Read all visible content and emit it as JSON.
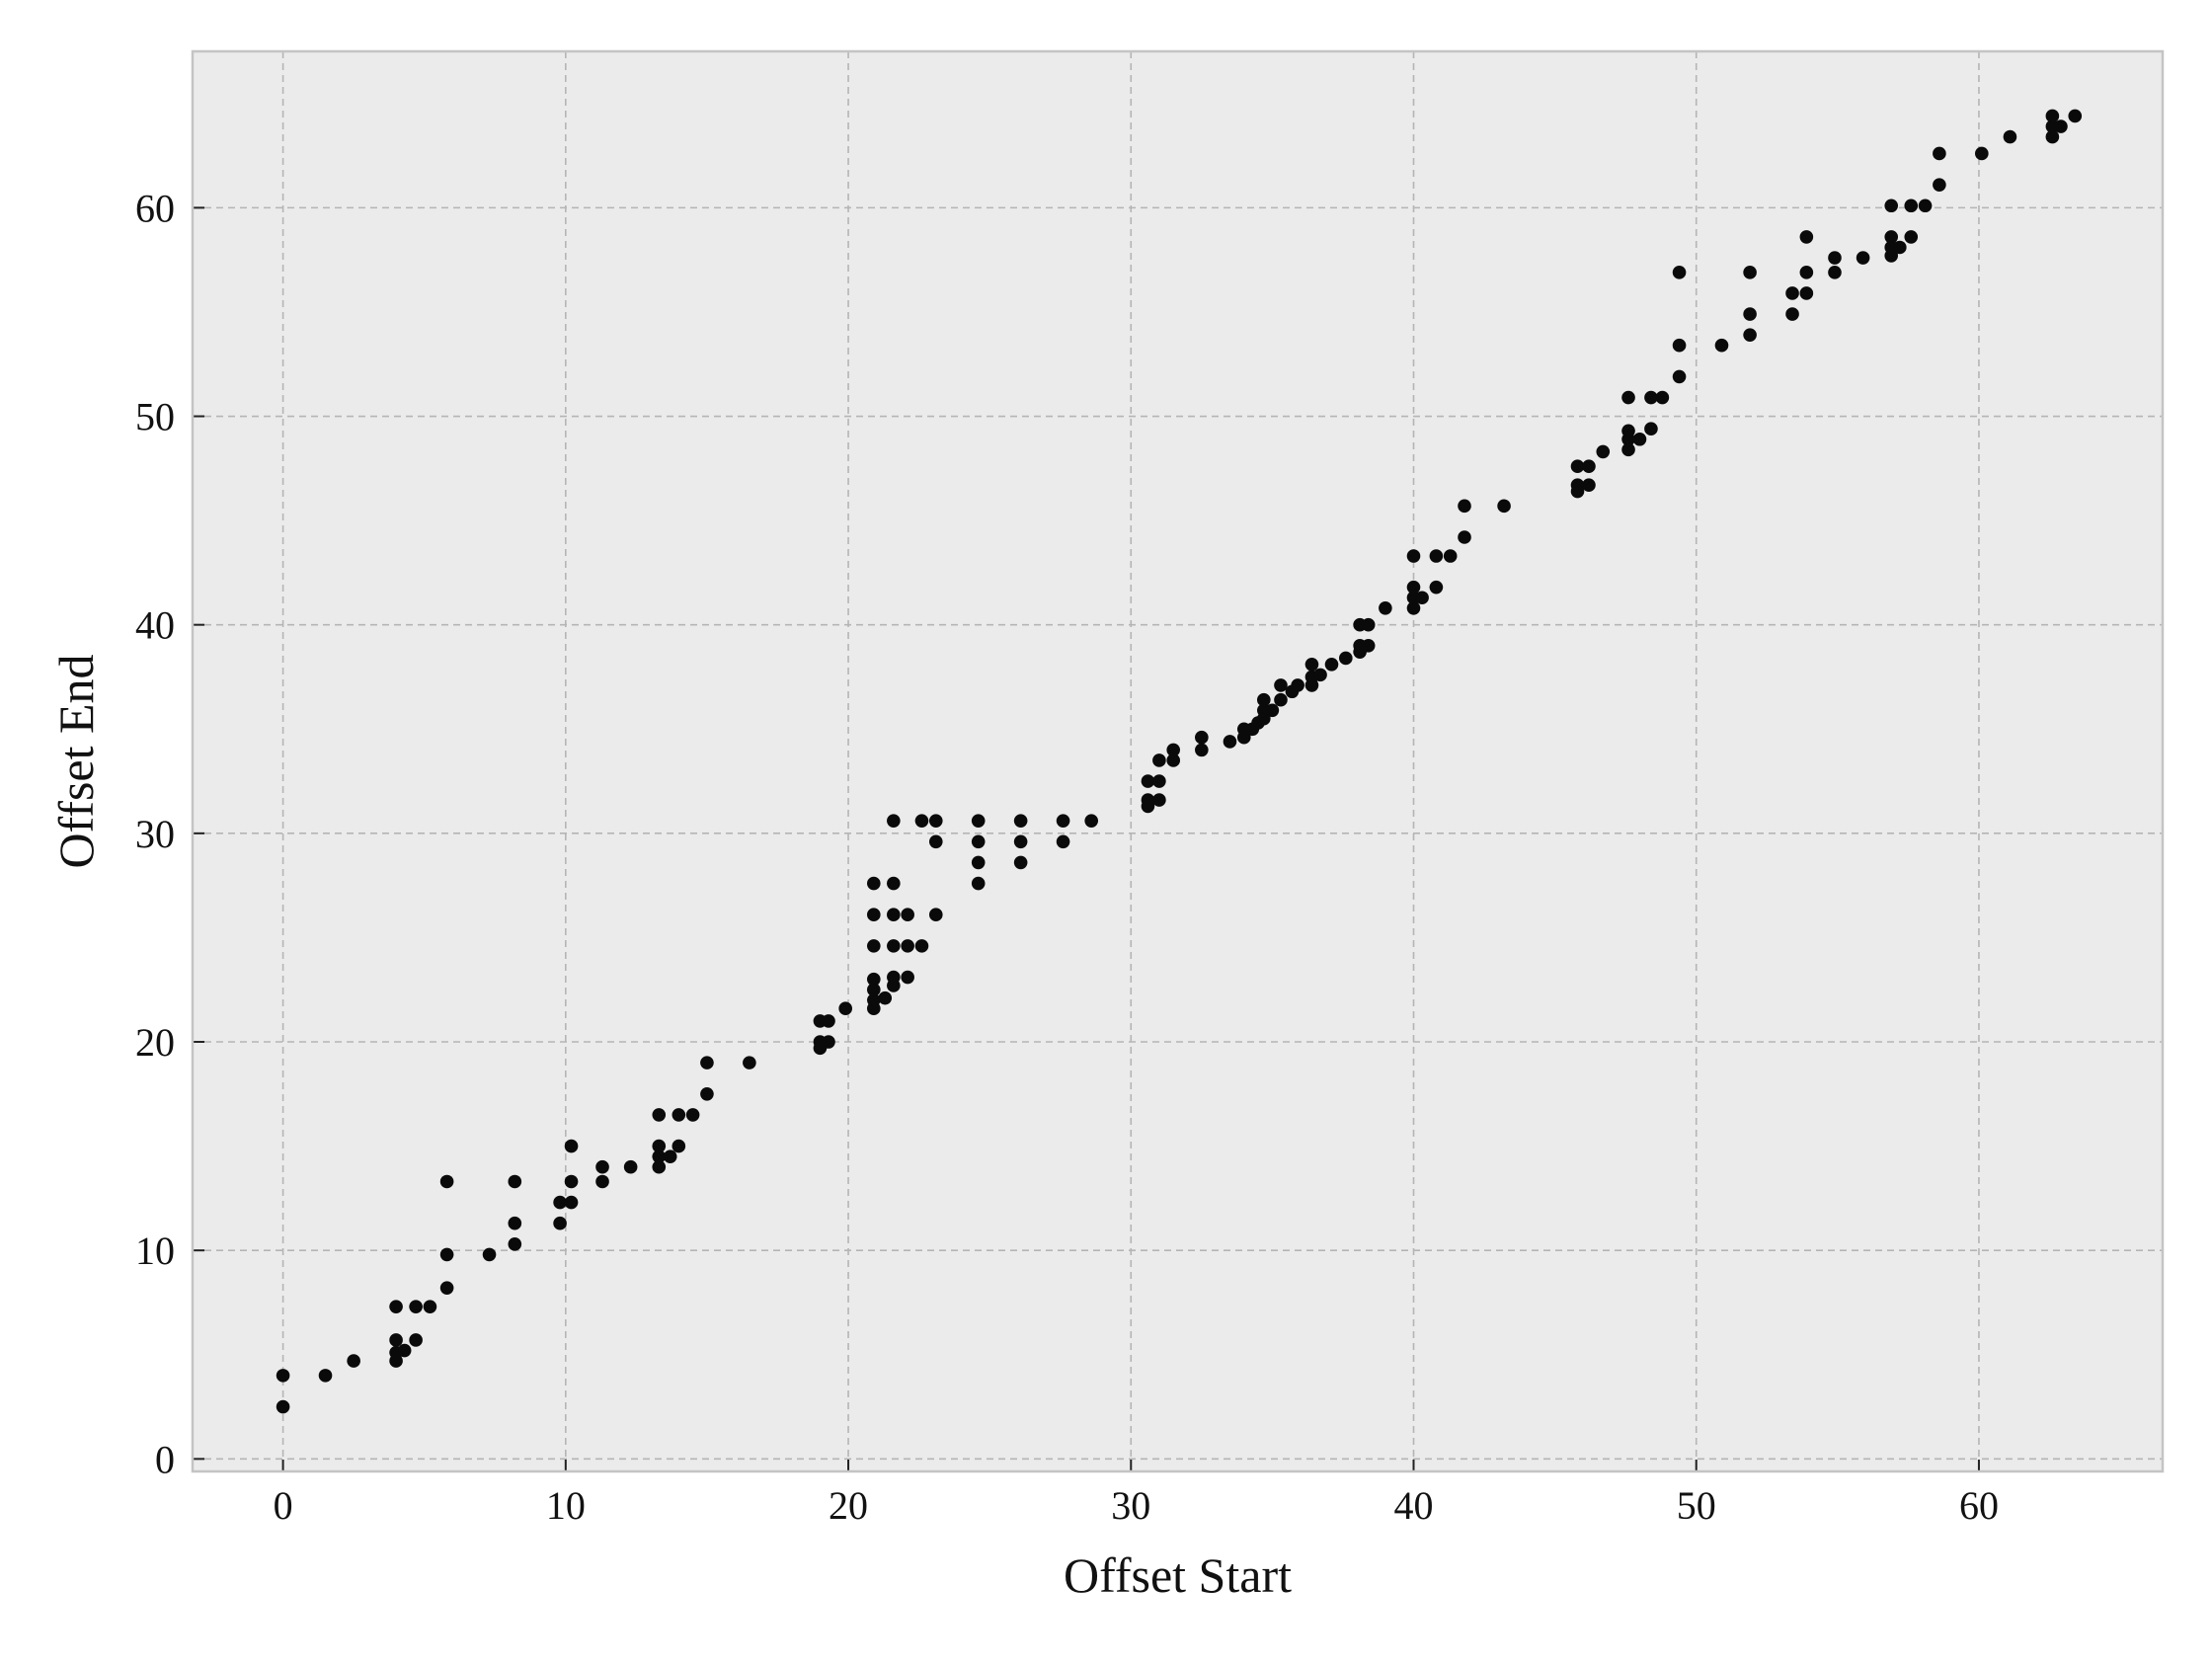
{
  "chart_data": {
    "type": "scatter",
    "title": "",
    "xlabel": "Offset Start",
    "ylabel": "Offset End",
    "xlim": [
      -3.2,
      66.5
    ],
    "ylim": [
      -0.6,
      67.5
    ],
    "xticks": [
      0,
      10,
      20,
      30,
      40,
      50,
      60
    ],
    "yticks": [
      0,
      10,
      20,
      30,
      40,
      50,
      60
    ],
    "xtick_labels": [
      "0",
      "10",
      "20",
      "30",
      "40",
      "50",
      "60"
    ],
    "ytick_labels": [
      "0",
      "10",
      "20",
      "30",
      "40",
      "50",
      "60"
    ],
    "grid": true,
    "colors": {
      "background": "#ebebeb",
      "grid": "#b5b5b5",
      "point": "#0a0a0a",
      "frame": "#c4c4c4"
    },
    "points": [
      [
        0,
        2.5
      ],
      [
        0,
        4.0
      ],
      [
        1.5,
        4.0
      ],
      [
        2.5,
        4.7
      ],
      [
        4.0,
        4.7
      ],
      [
        4.0,
        5.1
      ],
      [
        4.0,
        5.7
      ],
      [
        4.0,
        7.3
      ],
      [
        4.3,
        5.2
      ],
      [
        4.7,
        5.7
      ],
      [
        4.7,
        7.3
      ],
      [
        5.2,
        7.3
      ],
      [
        5.8,
        8.2
      ],
      [
        5.8,
        9.8
      ],
      [
        5.8,
        13.3
      ],
      [
        7.3,
        9.8
      ],
      [
        8.2,
        10.3
      ],
      [
        8.2,
        11.3
      ],
      [
        8.2,
        13.3
      ],
      [
        9.8,
        11.3
      ],
      [
        9.8,
        12.3
      ],
      [
        10.2,
        12.3
      ],
      [
        10.2,
        13.3
      ],
      [
        10.2,
        15.0
      ],
      [
        11.3,
        13.3
      ],
      [
        11.3,
        14.0
      ],
      [
        12.3,
        14.0
      ],
      [
        13.3,
        14.0
      ],
      [
        13.3,
        14.5
      ],
      [
        13.3,
        15.0
      ],
      [
        13.3,
        16.5
      ],
      [
        13.7,
        14.5
      ],
      [
        14.0,
        15.0
      ],
      [
        14.0,
        16.5
      ],
      [
        14.5,
        16.5
      ],
      [
        15.0,
        17.5
      ],
      [
        15.0,
        19.0
      ],
      [
        16.5,
        19.0
      ],
      [
        19.0,
        19.7
      ],
      [
        19.0,
        20.0
      ],
      [
        19.0,
        21.0
      ],
      [
        19.3,
        20.0
      ],
      [
        19.3,
        21.0
      ],
      [
        19.9,
        21.6
      ],
      [
        20.9,
        21.6
      ],
      [
        20.9,
        22.0
      ],
      [
        20.9,
        22.5
      ],
      [
        20.9,
        23.0
      ],
      [
        20.9,
        24.6
      ],
      [
        20.9,
        26.1
      ],
      [
        20.9,
        27.6
      ],
      [
        21.3,
        22.1
      ],
      [
        21.6,
        22.7
      ],
      [
        21.6,
        23.1
      ],
      [
        21.6,
        24.6
      ],
      [
        21.6,
        26.1
      ],
      [
        21.6,
        27.6
      ],
      [
        21.6,
        30.6
      ],
      [
        22.1,
        23.1
      ],
      [
        22.1,
        24.6
      ],
      [
        22.1,
        26.1
      ],
      [
        22.6,
        24.6
      ],
      [
        22.6,
        30.6
      ],
      [
        23.1,
        26.1
      ],
      [
        23.1,
        29.6
      ],
      [
        23.1,
        30.6
      ],
      [
        24.6,
        27.6
      ],
      [
        24.6,
        28.6
      ],
      [
        24.6,
        29.6
      ],
      [
        24.6,
        30.6
      ],
      [
        26.1,
        28.6
      ],
      [
        26.1,
        29.6
      ],
      [
        26.1,
        30.6
      ],
      [
        27.6,
        29.6
      ],
      [
        27.6,
        30.6
      ],
      [
        28.6,
        30.6
      ],
      [
        30.6,
        31.3
      ],
      [
        30.6,
        31.6
      ],
      [
        30.6,
        32.5
      ],
      [
        31.0,
        31.6
      ],
      [
        31.0,
        32.5
      ],
      [
        31.0,
        33.5
      ],
      [
        31.5,
        33.5
      ],
      [
        31.5,
        34.0
      ],
      [
        32.5,
        34.0
      ],
      [
        32.5,
        34.6
      ],
      [
        33.5,
        34.4
      ],
      [
        34.0,
        34.6
      ],
      [
        34.0,
        35.0
      ],
      [
        34.3,
        35.0
      ],
      [
        34.5,
        35.3
      ],
      [
        34.7,
        35.5
      ],
      [
        34.7,
        35.9
      ],
      [
        34.7,
        36.4
      ],
      [
        35.0,
        35.9
      ],
      [
        35.3,
        36.4
      ],
      [
        35.3,
        37.1
      ],
      [
        35.7,
        36.8
      ],
      [
        35.9,
        37.1
      ],
      [
        36.4,
        37.1
      ],
      [
        36.4,
        37.5
      ],
      [
        36.4,
        38.1
      ],
      [
        36.7,
        37.6
      ],
      [
        37.1,
        38.1
      ],
      [
        37.6,
        38.4
      ],
      [
        38.1,
        38.7
      ],
      [
        38.1,
        39.0
      ],
      [
        38.1,
        40.0
      ],
      [
        38.4,
        39.0
      ],
      [
        38.4,
        40.0
      ],
      [
        39.0,
        40.8
      ],
      [
        40.0,
        40.8
      ],
      [
        40.0,
        41.3
      ],
      [
        40.0,
        41.8
      ],
      [
        40.0,
        43.3
      ],
      [
        40.3,
        41.3
      ],
      [
        40.8,
        41.8
      ],
      [
        40.8,
        43.3
      ],
      [
        41.3,
        43.3
      ],
      [
        41.8,
        44.2
      ],
      [
        41.8,
        45.7
      ],
      [
        43.2,
        45.7
      ],
      [
        45.8,
        46.4
      ],
      [
        45.8,
        46.7
      ],
      [
        45.8,
        47.6
      ],
      [
        46.2,
        46.7
      ],
      [
        46.2,
        47.6
      ],
      [
        46.7,
        48.3
      ],
      [
        47.6,
        48.4
      ],
      [
        47.6,
        48.9
      ],
      [
        47.6,
        49.3
      ],
      [
        47.6,
        50.9
      ],
      [
        48.0,
        48.9
      ],
      [
        48.4,
        49.4
      ],
      [
        48.4,
        50.9
      ],
      [
        48.8,
        50.9
      ],
      [
        49.4,
        51.9
      ],
      [
        49.4,
        53.4
      ],
      [
        49.4,
        56.9
      ],
      [
        50.9,
        53.4
      ],
      [
        51.9,
        53.9
      ],
      [
        51.9,
        54.9
      ],
      [
        51.9,
        56.9
      ],
      [
        53.4,
        54.9
      ],
      [
        53.4,
        55.9
      ],
      [
        53.9,
        55.9
      ],
      [
        53.9,
        56.9
      ],
      [
        53.9,
        58.6
      ],
      [
        54.9,
        56.9
      ],
      [
        54.9,
        57.6
      ],
      [
        55.9,
        57.6
      ],
      [
        56.9,
        57.7
      ],
      [
        56.9,
        58.1
      ],
      [
        56.9,
        58.6
      ],
      [
        56.9,
        60.1
      ],
      [
        57.2,
        58.1
      ],
      [
        57.6,
        58.6
      ],
      [
        57.6,
        60.1
      ],
      [
        58.1,
        60.1
      ],
      [
        58.6,
        61.1
      ],
      [
        58.6,
        62.6
      ],
      [
        60.1,
        62.6
      ],
      [
        61.1,
        63.4
      ],
      [
        62.6,
        63.4
      ],
      [
        62.6,
        63.9
      ],
      [
        62.6,
        64.4
      ],
      [
        62.9,
        63.9
      ],
      [
        63.4,
        64.4
      ]
    ]
  }
}
